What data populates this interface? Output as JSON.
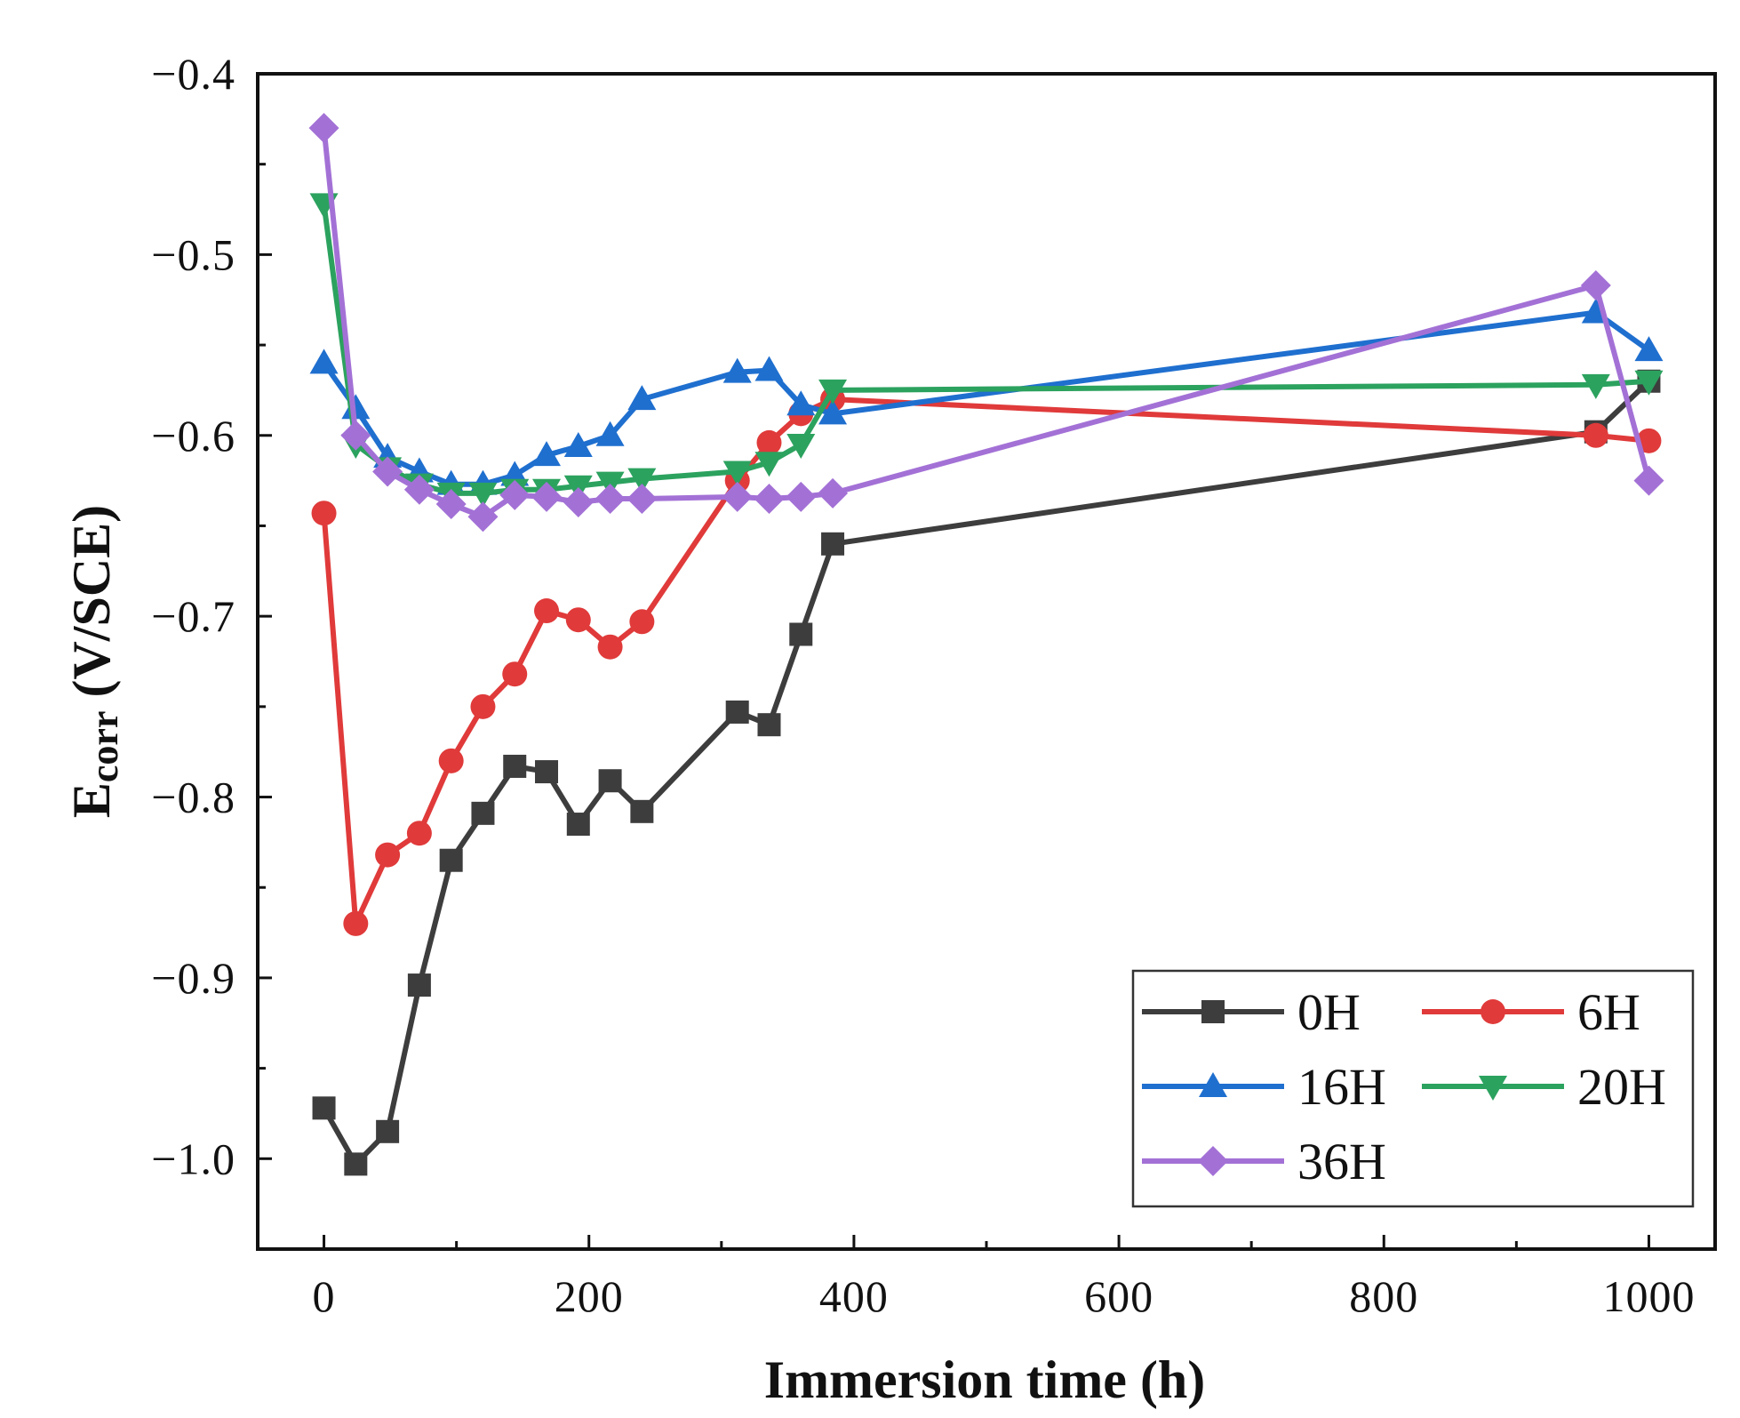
{
  "chart_data": {
    "type": "line",
    "title": "",
    "xlabel": "Immersion time (h)",
    "ylabel_main": "E",
    "ylabel_sub": "corr",
    "ylabel_rest": " (V/SCE)",
    "xlim": [
      -50,
      1050
    ],
    "ylim": [
      -1.05,
      -0.4
    ],
    "x_ticks": [
      {
        "value": 0,
        "label": "0"
      },
      {
        "value": 200,
        "label": "200"
      },
      {
        "value": 400,
        "label": "400"
      },
      {
        "value": 600,
        "label": "600"
      },
      {
        "value": 800,
        "label": "800"
      },
      {
        "value": 1000,
        "label": "1000"
      }
    ],
    "y_ticks": [
      {
        "value": -0.4,
        "label": "−0.4"
      },
      {
        "value": -0.5,
        "label": "−0.5"
      },
      {
        "value": -0.6,
        "label": "−0.6"
      },
      {
        "value": -0.7,
        "label": "−0.7"
      },
      {
        "value": -0.8,
        "label": "−0.8"
      },
      {
        "value": -0.9,
        "label": "−0.9"
      },
      {
        "value": -1.0,
        "label": "−1.0"
      }
    ],
    "legend_position": "bottom-right",
    "series": [
      {
        "name": "0H",
        "color": "#3d3d3d",
        "marker": "square",
        "x": [
          0,
          24,
          48,
          72,
          96,
          120,
          144,
          168,
          192,
          216,
          240,
          312,
          336,
          360,
          384,
          960,
          1000
        ],
        "values": [
          -0.972,
          -1.003,
          -0.985,
          -0.904,
          -0.835,
          -0.809,
          -0.783,
          -0.786,
          -0.815,
          -0.791,
          -0.808,
          -0.753,
          -0.76,
          -0.71,
          -0.66,
          -0.598,
          -0.57
        ]
      },
      {
        "name": "6H",
        "color": "#e03a3a",
        "marker": "circle",
        "x": [
          0,
          24,
          48,
          72,
          96,
          120,
          144,
          168,
          192,
          216,
          240,
          312,
          336,
          360,
          384,
          960,
          1000
        ],
        "values": [
          -0.643,
          -0.87,
          -0.832,
          -0.82,
          -0.78,
          -0.75,
          -0.732,
          -0.697,
          -0.702,
          -0.717,
          -0.703,
          -0.625,
          -0.604,
          -0.588,
          -0.58,
          -0.6,
          -0.603
        ]
      },
      {
        "name": "16H",
        "color": "#1f6fcf",
        "marker": "triangle-up",
        "x": [
          0,
          24,
          48,
          72,
          96,
          120,
          144,
          168,
          192,
          216,
          240,
          312,
          336,
          360,
          384,
          960,
          1000
        ],
        "values": [
          -0.56,
          -0.585,
          -0.612,
          -0.62,
          -0.627,
          -0.627,
          -0.622,
          -0.611,
          -0.606,
          -0.6,
          -0.58,
          -0.565,
          -0.564,
          -0.583,
          -0.588,
          -0.532,
          -0.553
        ]
      },
      {
        "name": "20H",
        "color": "#2ca25f",
        "marker": "triangle-down",
        "x": [
          0,
          24,
          48,
          72,
          96,
          120,
          144,
          168,
          192,
          216,
          240,
          312,
          336,
          360,
          384,
          960,
          1000
        ],
        "values": [
          -0.472,
          -0.605,
          -0.618,
          -0.627,
          -0.632,
          -0.632,
          -0.63,
          -0.63,
          -0.628,
          -0.626,
          -0.624,
          -0.62,
          -0.615,
          -0.605,
          -0.575,
          -0.572,
          -0.57
        ]
      },
      {
        "name": "36H",
        "color": "#a371d6",
        "marker": "diamond",
        "x": [
          0,
          24,
          48,
          72,
          96,
          120,
          144,
          168,
          192,
          216,
          240,
          312,
          336,
          360,
          384,
          960,
          1000
        ],
        "values": [
          -0.43,
          -0.6,
          -0.62,
          -0.63,
          -0.638,
          -0.645,
          -0.633,
          -0.634,
          -0.637,
          -0.635,
          -0.635,
          -0.634,
          -0.635,
          -0.634,
          -0.632,
          -0.517,
          -0.625
        ]
      }
    ]
  }
}
